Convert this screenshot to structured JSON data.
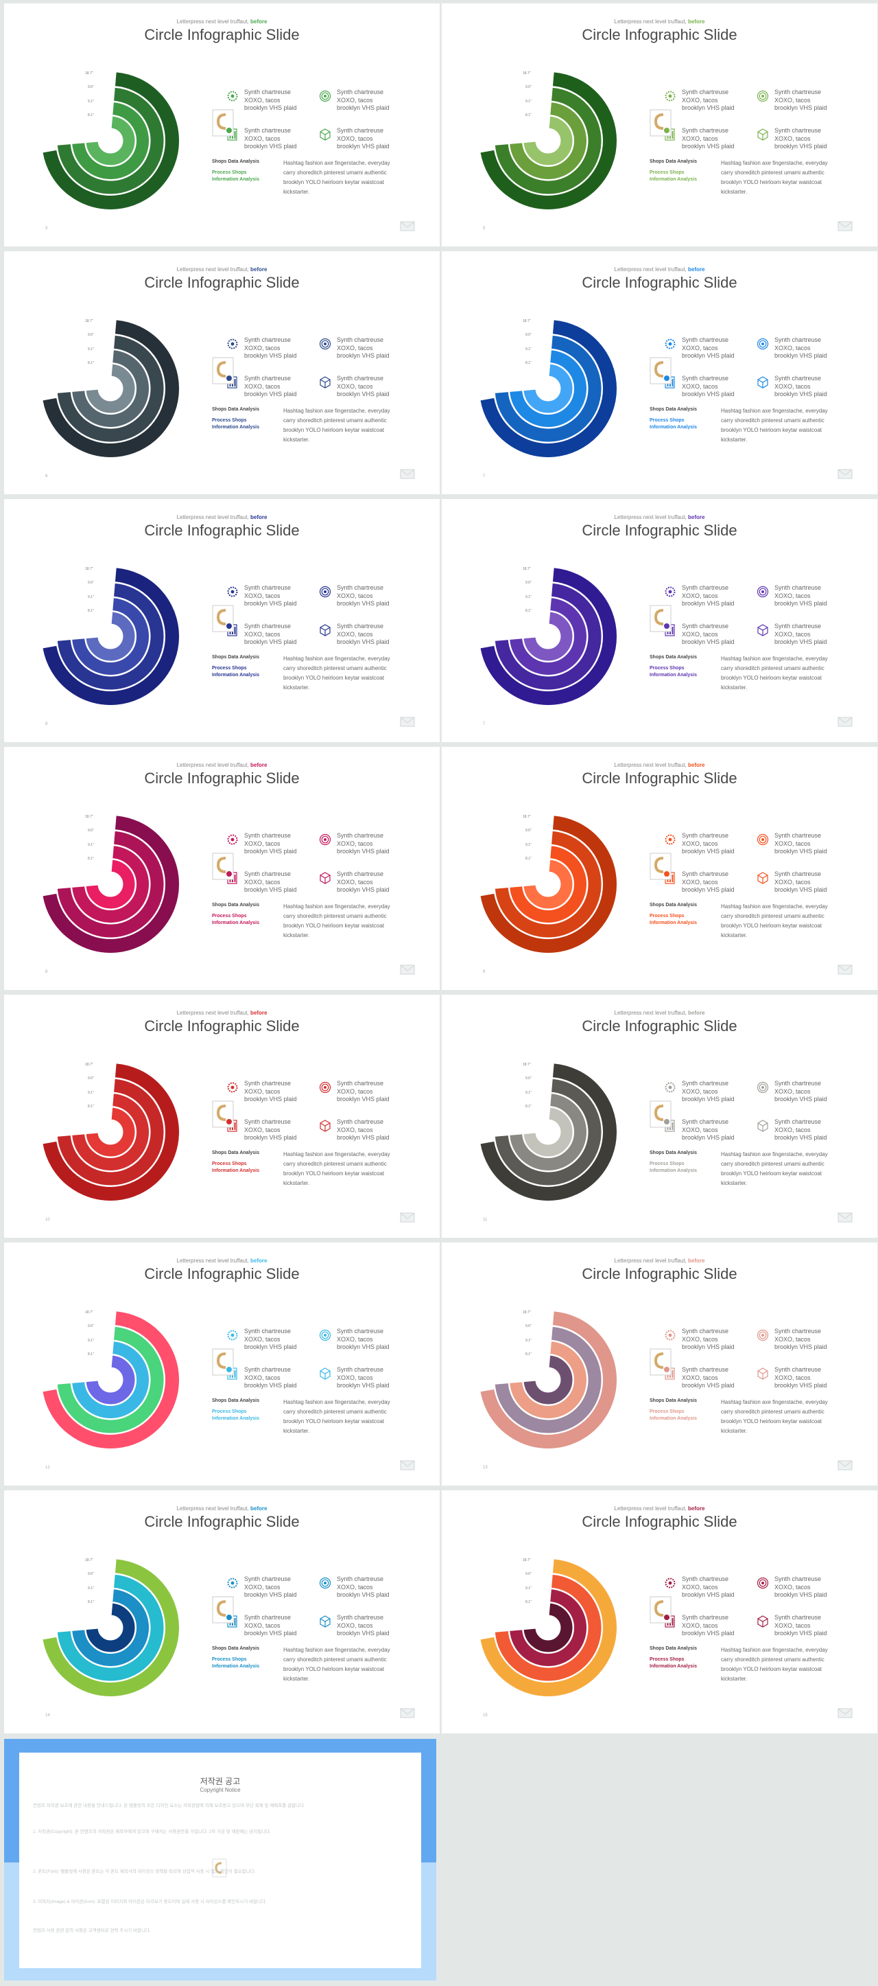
{
  "deck": {
    "tagline": "Letterpress next level truffaut,",
    "tagline_accent": "before",
    "title": "Circle Infographic Slide",
    "scale_labels": [
      "18.7\"",
      "9.6\"",
      "9.1\"",
      "8.1\""
    ],
    "features": [
      {
        "text": "Synth chartreuse XOXO, tacos brooklyn VHS plaid",
        "icon": "gear-icon"
      },
      {
        "text": "Synth chartreuse XOXO, tacos brooklyn VHS plaid",
        "icon": "target-icon"
      },
      {
        "text": "Synth chartreuse XOXO, tacos brooklyn VHS plaid",
        "icon": "document-chart-icon"
      },
      {
        "text": "Synth chartreuse XOXO, tacos brooklyn VHS plaid",
        "icon": "cube-icon"
      }
    ],
    "bottom_heading": "Shops Data Analysis",
    "bottom_accent_1": "Process Shops",
    "bottom_accent_2": "Information Analysis",
    "paragraph": "Hashtag fashion axe fingerstache, everyday carry shoreditch pinterest umami authentic brooklyn YOLO heirloom keytar waistcoat kickstarter."
  },
  "slides": [
    {
      "page": "3",
      "rings": [
        "#1e5e23",
        "#2f7a33",
        "#3f9a44",
        "#5ab45e"
      ],
      "accent": "#4aa84e"
    },
    {
      "page": "5",
      "rings": [
        "#1f5f1c",
        "#3c7f2a",
        "#6b9f3c",
        "#97c36a"
      ],
      "accent": "#7bb24d"
    },
    {
      "page": "6",
      "rings": [
        "#263038",
        "#39474f",
        "#56666f",
        "#7a8a93"
      ],
      "accent": "#2c4a8c"
    },
    {
      "page": "7",
      "rings": [
        "#0e3e9c",
        "#1565c0",
        "#1e88e5",
        "#42a5f5"
      ],
      "accent": "#1e88e5"
    },
    {
      "page": "8",
      "rings": [
        "#1a237e",
        "#283593",
        "#3949ab",
        "#5c6bc0"
      ],
      "accent": "#283593"
    },
    {
      "page": "7",
      "rings": [
        "#311b92",
        "#4527a0",
        "#5e35b1",
        "#7e57c2"
      ],
      "accent": "#5e35b1"
    },
    {
      "page": "8",
      "rings": [
        "#880e4f",
        "#ad1457",
        "#c2185b",
        "#e91e63"
      ],
      "accent": "#c2185b"
    },
    {
      "page": "9",
      "rings": [
        "#bf360c",
        "#d84315",
        "#f4511e",
        "#ff7043"
      ],
      "accent": "#f4511e"
    },
    {
      "page": "10",
      "rings": [
        "#b71c1c",
        "#c62828",
        "#d32f2f",
        "#e53935"
      ],
      "accent": "#d32f2f"
    },
    {
      "page": "11",
      "rings": [
        "#3e3d38",
        "#5b5a55",
        "#898882",
        "#c3c2bb"
      ],
      "accent": "#a0a09a"
    },
    {
      "page": "12",
      "rings": [
        "#ff4f6c",
        "#4ad47c",
        "#3ab8e5",
        "#6d68e6"
      ],
      "accent": "#3ab8e5"
    },
    {
      "page": "13",
      "rings": [
        "#e0968b",
        "#9c88a0",
        "#ec9e86",
        "#6d5070"
      ],
      "accent": "#e0968b"
    },
    {
      "page": "14",
      "rings": [
        "#8bc53f",
        "#26bbcf",
        "#1b8fc6",
        "#0d3f80"
      ],
      "accent": "#1b8fc6"
    },
    {
      "page": "15",
      "rings": [
        "#f6a93b",
        "#f15a34",
        "#a31f45",
        "#5a1531"
      ],
      "accent": "#a31f45"
    }
  ],
  "notice": {
    "title": "저작권 공고",
    "subtitle": "Copyright Notice",
    "paragraphs": [
      "컨텐츠 저작권 보호에 관한 내용을 안내드립니다. 본 템플릿의 모든 디자인 요소는 저작권법에 의해 보호받고 있으며 무단 복제 및 재배포를 금합니다.",
      "1. 저작권(Copyright): 본 컨텐츠의 저작권은 제작자에게 있으며 구매자는 사용권만을 가집니다. 2차 가공 및 재판매는 금지됩니다.",
      "2. 폰트(Font): 템플릿에 사용된 폰트는 각 폰트 제작사의 라이선스 정책을 따르며 상업적 사용 시 별도 확인이 필요합니다.",
      "3. 이미지(Image) & 아이콘(Icon): 포함된 이미지와 아이콘은 미리보기 용도이며 실제 사용 시 라이선스를 확인하시기 바랍니다.",
      "컨텐츠 사용 관련 문의 사항은 고객센터로 연락 주시기 바랍니다."
    ]
  }
}
